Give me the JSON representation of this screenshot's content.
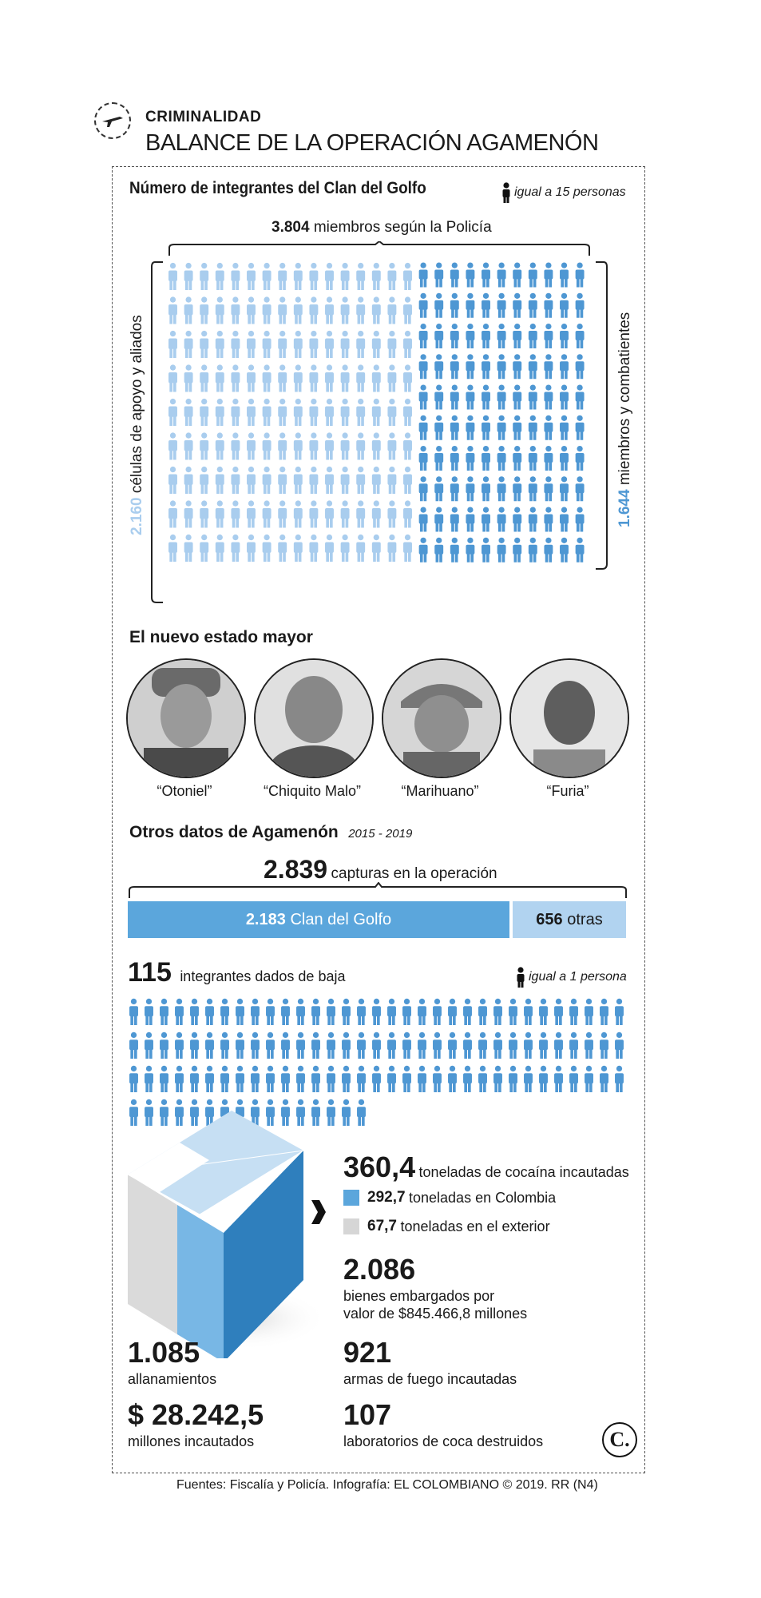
{
  "header": {
    "section": "CRIMINALIDAD",
    "title": "BALANCE DE LA OPERACIÓN AGAMENÓN"
  },
  "members": {
    "heading": "Número de integrantes del Clan del Golfo",
    "legend": "igual a 15 personas",
    "total_value": "3.804",
    "total_label": "miembros según la Policía",
    "left_value": "2.160",
    "left_label": "células de apoyo y aliados",
    "right_value": "1.644",
    "right_label": "miembros y combatientes",
    "left_count": 144,
    "right_count": 110,
    "colors": {
      "light": "#a9cdee",
      "dark": "#4e97d3"
    }
  },
  "staff": {
    "heading": "El nuevo estado mayor",
    "names": [
      "“Otoniel”",
      "“Chiquito Malo”",
      "“Marihuano”",
      "“Furia”"
    ]
  },
  "other": {
    "heading": "Otros datos de Agamenón",
    "years": "2015 - 2019",
    "captures_value": "2.839",
    "captures_label": "capturas en la operación",
    "bar1_value": "2.183",
    "bar1_label": "Clan del Golfo",
    "bar2_value": "656",
    "bar2_label": "otras",
    "bar1_share": 0.769,
    "killed_value": "115",
    "killed_label": "integrantes dados de baja",
    "killed_legend": "igual a 1 persona",
    "killed_count": 115
  },
  "cocaine": {
    "total_value": "360,4",
    "total_label": "toneladas de cocaína incautadas",
    "col_value": "292,7",
    "col_label": "toneladas en Colombia",
    "ext_value": "67,7",
    "ext_label": "toneladas en el exterior"
  },
  "stats": {
    "bienes_value": "2.086",
    "bienes_label1": "bienes embargados por",
    "bienes_label2": "valor de $845.466,8 millones",
    "allan_value": "1.085",
    "allan_label": "allanamientos",
    "armas_value": "921",
    "armas_label": "armas de fuego incautadas",
    "money_value": "$ 28.242,5",
    "money_label": "millones incautados",
    "labs_value": "107",
    "labs_label": "laboratorios de coca destruidos"
  },
  "footer": {
    "logo": "C.",
    "source": "Fuentes: Fiscalía y Policía. Infografía: EL COLOMBIANO © 2019. RR (N4)"
  }
}
